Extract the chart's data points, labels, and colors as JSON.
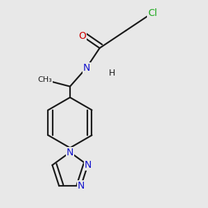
{
  "background_color": "#e8e8e8",
  "bond_color": "#1a1a1a",
  "bond_width": 1.6,
  "atoms": {
    "Cl": {
      "color": "#22aa22",
      "fontsize": 10
    },
    "O": {
      "color": "#cc0000",
      "fontsize": 10
    },
    "N": {
      "color": "#1111cc",
      "fontsize": 10
    },
    "H": {
      "color": "#1a1a1a",
      "fontsize": 9
    }
  },
  "figsize": [
    3.0,
    3.0
  ],
  "dpi": 100
}
